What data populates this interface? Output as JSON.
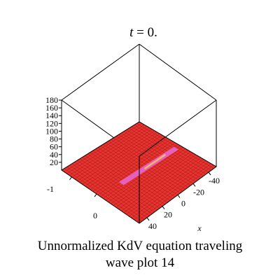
{
  "caption": {
    "line1": "Unnormalized KdV equation  traveling",
    "line2": "wave plot 14"
  },
  "chart_data": {
    "type": "surface3d",
    "title": "t = 0.",
    "title_var": "t",
    "title_rest": " = 0.",
    "x_axis": {
      "label": "x",
      "ticks": [
        -40,
        -20,
        0,
        20,
        40
      ],
      "tick_labels": [
        "-40",
        "-20",
        "0",
        "20",
        "40"
      ],
      "range": [
        -50,
        50
      ]
    },
    "y_axis": {
      "ticks": [
        -1,
        0
      ],
      "tick_labels": [
        "-1",
        "0"
      ],
      "range": [
        -1,
        1
      ]
    },
    "z_axis": {
      "ticks": [
        20,
        40,
        60,
        80,
        100,
        120,
        140,
        160,
        180
      ],
      "tick_labels": [
        "20",
        "40",
        "60",
        "80",
        "100",
        "120",
        "140",
        "160",
        "180"
      ],
      "range": [
        0,
        180
      ]
    },
    "surface_color": "#e8332f",
    "mesh_color": "#7a1010",
    "ridge_color": "#e86bd6",
    "ridge_highlight": "#f2c062"
  }
}
